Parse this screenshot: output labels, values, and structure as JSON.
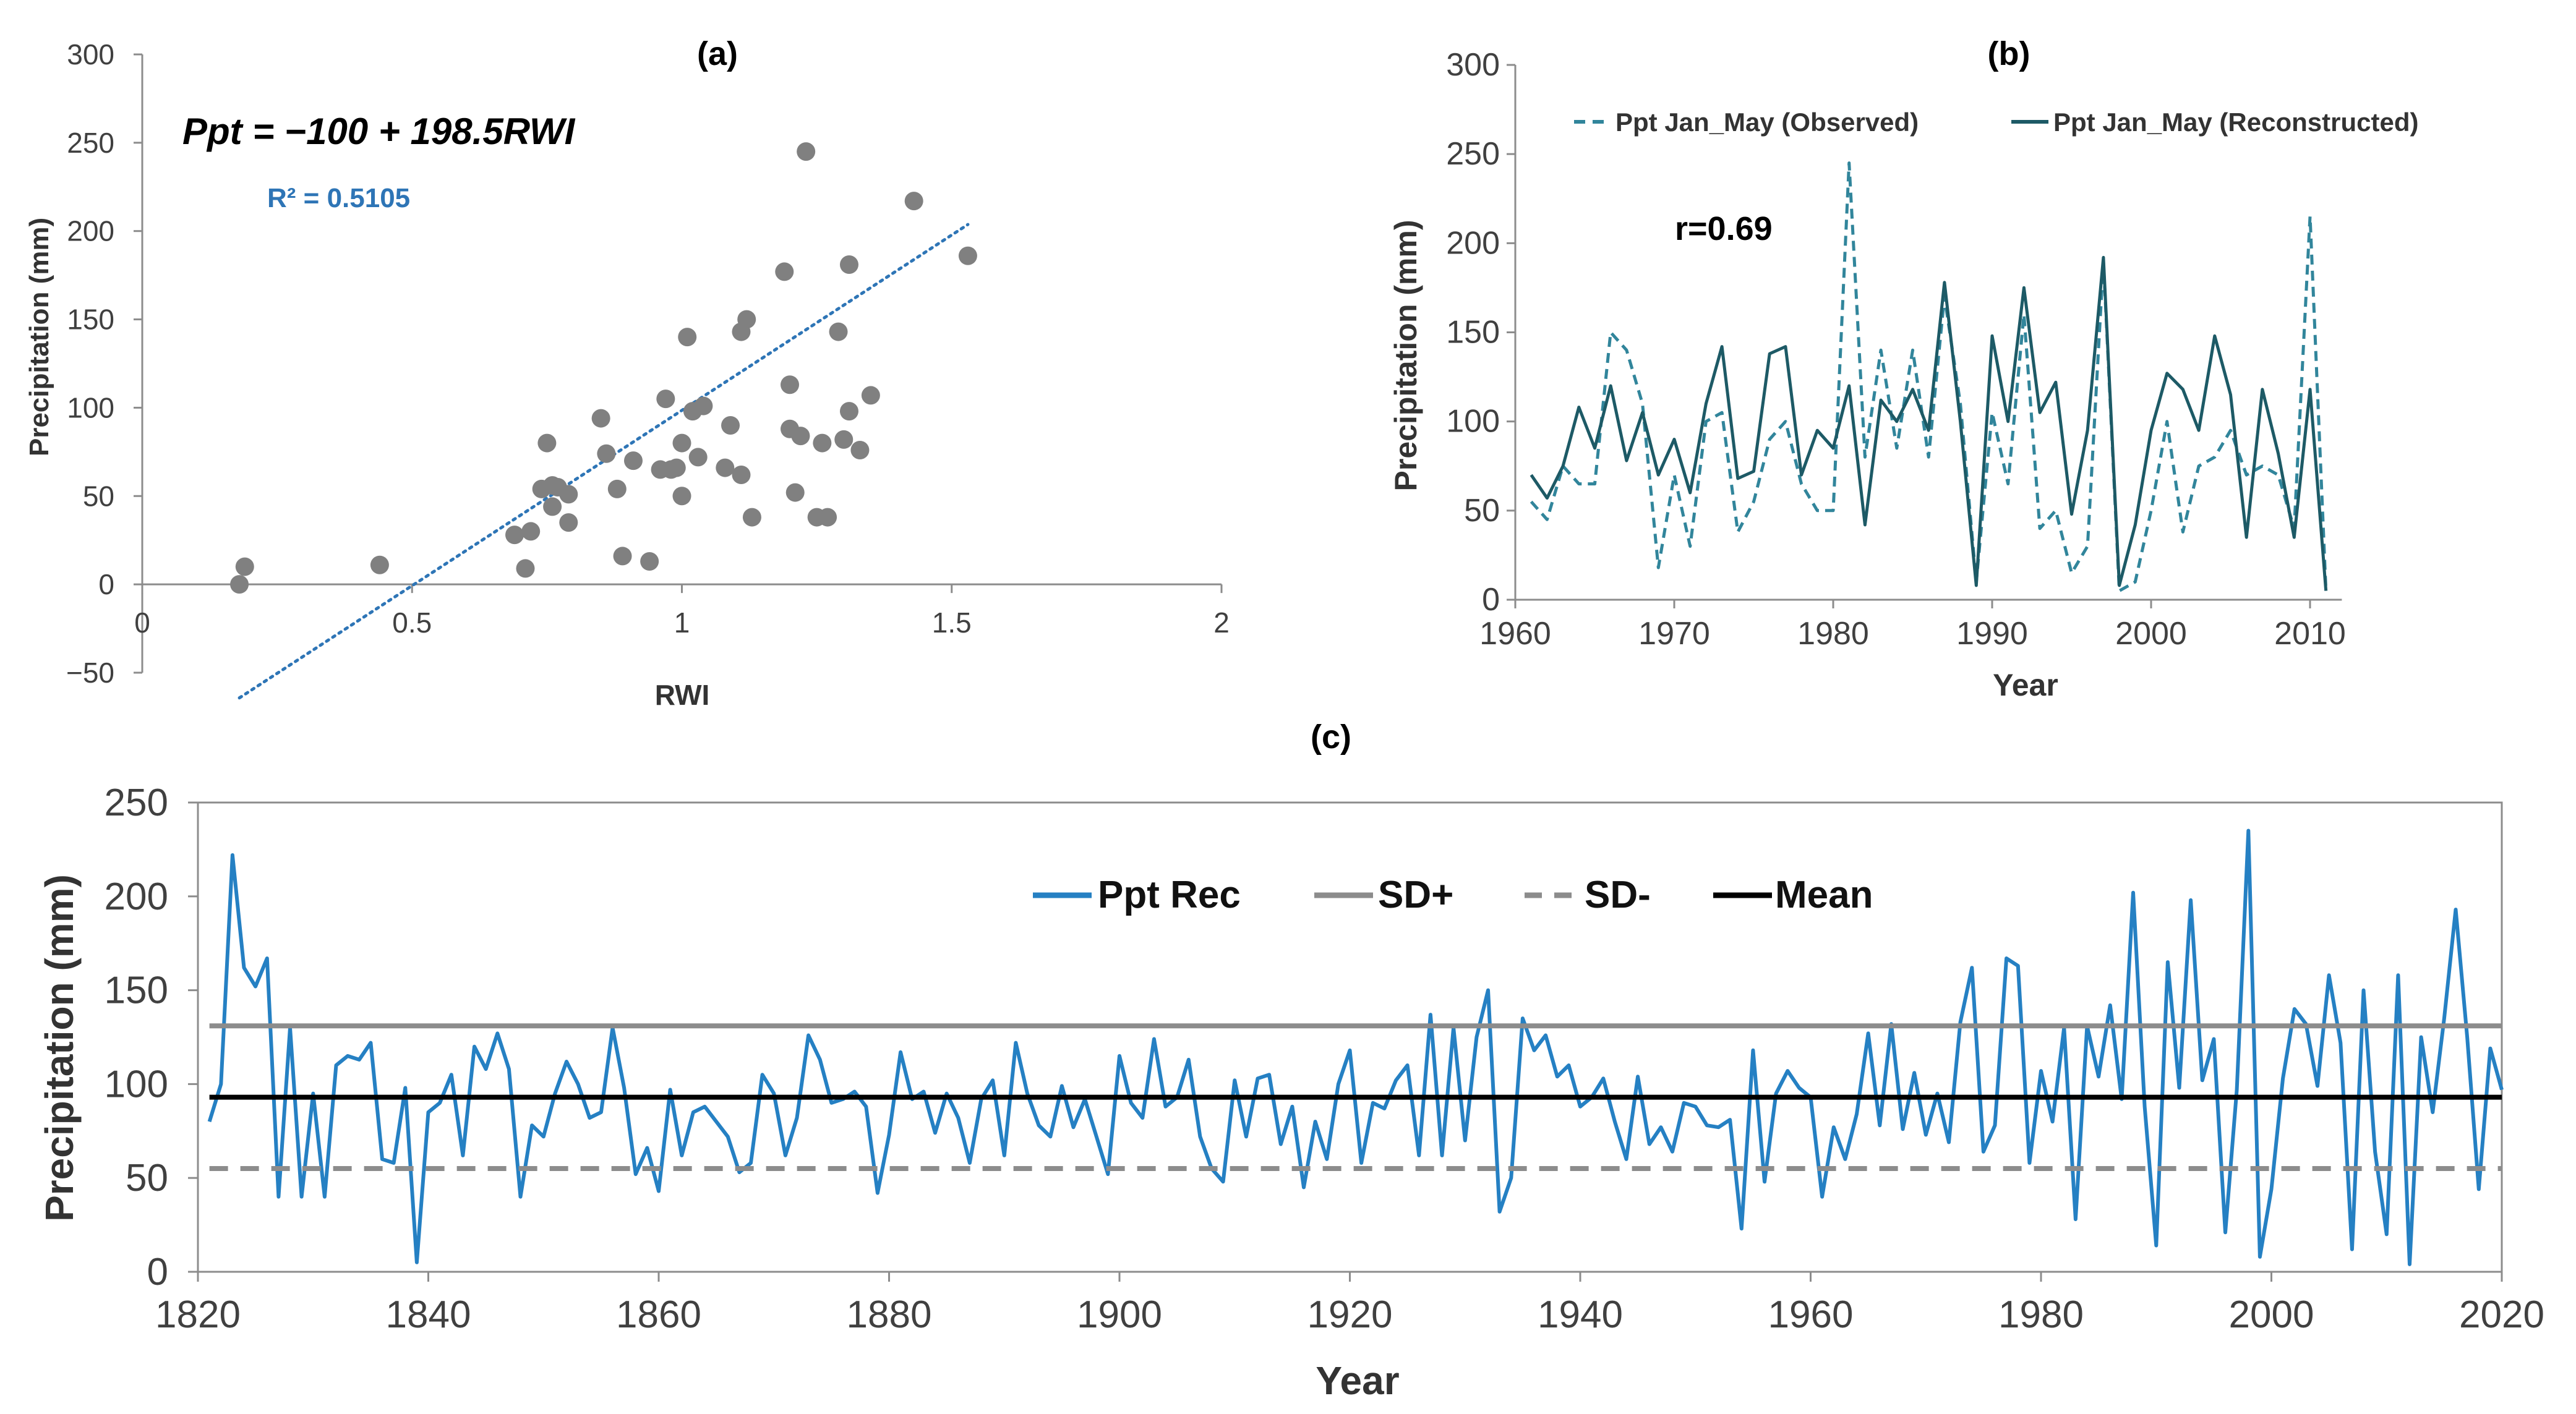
{
  "chart_data": [
    {
      "panel": "a",
      "type": "scatter",
      "title": "(a)",
      "xlabel": "RWI",
      "ylabel": "Precipitation (mm)",
      "xlim": [
        0,
        2
      ],
      "ylim": [
        -50,
        300
      ],
      "x_ticks": [
        "0",
        "0.5",
        "1",
        "1.5",
        "2"
      ],
      "y_ticks": [
        "−50",
        "0",
        "50",
        "100",
        "150",
        "200",
        "250",
        "300"
      ],
      "equation": "Ppt = −100 + 198.5RWI",
      "r2_label": "R² = 0.5105",
      "trendline": {
        "slope": 198.5,
        "intercept": -100,
        "x_range": [
          0.18,
          1.53
        ]
      },
      "colors": {
        "points": "#808080",
        "trend": "#2e75b6",
        "r2": "#2e75b6"
      },
      "x": [
        0.18,
        0.19,
        0.44,
        0.69,
        0.71,
        0.72,
        0.74,
        0.75,
        0.76,
        0.76,
        0.77,
        0.79,
        0.79,
        0.85,
        0.86,
        0.88,
        0.89,
        0.91,
        0.94,
        0.96,
        0.97,
        0.98,
        0.99,
        1.0,
        1.0,
        1.01,
        1.02,
        1.03,
        1.04,
        1.08,
        1.09,
        1.11,
        1.11,
        1.12,
        1.13,
        1.19,
        1.2,
        1.2,
        1.21,
        1.22,
        1.23,
        1.25,
        1.26,
        1.27,
        1.29,
        1.3,
        1.31,
        1.31,
        1.33,
        1.35,
        1.43,
        1.53
      ],
      "y": [
        0,
        10,
        11,
        28,
        9,
        30,
        54,
        80,
        44,
        56,
        55,
        51,
        35,
        94,
        74,
        54,
        16,
        70,
        13,
        65,
        105,
        65,
        66,
        50,
        80,
        140,
        98,
        72,
        101,
        66,
        90,
        62,
        143,
        150,
        38,
        177,
        113,
        88,
        52,
        84,
        245,
        38,
        80,
        38,
        143,
        82,
        181,
        98,
        76,
        107,
        217,
        186
      ]
    },
    {
      "panel": "b",
      "type": "line",
      "title": "(b)",
      "xlabel": "Year",
      "ylabel": "Precipitation (mm)",
      "xlim": [
        1960,
        2012
      ],
      "ylim": [
        0,
        300
      ],
      "x_ticks": [
        "1960",
        "1970",
        "1980",
        "1990",
        "2000",
        "2010"
      ],
      "y_ticks": [
        "0",
        "50",
        "100",
        "150",
        "200",
        "250",
        "300"
      ],
      "annotation": "r=0.69",
      "x": [
        1961,
        1962,
        1963,
        1964,
        1965,
        1966,
        1967,
        1968,
        1969,
        1970,
        1971,
        1972,
        1973,
        1974,
        1975,
        1976,
        1977,
        1978,
        1979,
        1980,
        1981,
        1982,
        1983,
        1984,
        1985,
        1986,
        1987,
        1988,
        1989,
        1990,
        1991,
        1992,
        1993,
        1994,
        1995,
        1996,
        1997,
        1998,
        1999,
        2000,
        2001,
        2002,
        2003,
        2004,
        2005,
        2006,
        2007,
        2008,
        2009,
        2010,
        2011
      ],
      "series": [
        {
          "name": "Ppt Jan_May (Observed)",
          "style": "dashed",
          "color": "#31859b",
          "values": [
            55,
            45,
            75,
            65,
            65,
            150,
            140,
            110,
            18,
            70,
            30,
            100,
            105,
            38,
            55,
            90,
            100,
            65,
            50,
            50,
            245,
            80,
            140,
            85,
            140,
            80,
            170,
            110,
            10,
            105,
            65,
            160,
            40,
            50,
            15,
            30,
            190,
            5,
            10,
            50,
            100,
            38,
            75,
            80,
            95,
            70,
            75,
            70,
            40,
            215,
            5
          ]
        },
        {
          "name": "Ppt Jan_May (Reconstructed)",
          "style": "solid",
          "color": "#1d5a66",
          "values": [
            70,
            57,
            75,
            108,
            85,
            120,
            78,
            105,
            70,
            90,
            60,
            110,
            142,
            68,
            72,
            138,
            142,
            70,
            95,
            85,
            120,
            42,
            112,
            100,
            118,
            95,
            178,
            100,
            8,
            148,
            100,
            175,
            105,
            122,
            48,
            95,
            192,
            8,
            42,
            95,
            127,
            118,
            95,
            148,
            115,
            35,
            118,
            82,
            35,
            118,
            5
          ]
        }
      ]
    },
    {
      "panel": "c",
      "type": "line",
      "title": "(c)",
      "xlabel": "Year",
      "ylabel": "Precipitation (mm)",
      "xlim": [
        1820,
        2020
      ],
      "ylim": [
        0,
        250
      ],
      "x_ticks": [
        "1820",
        "1840",
        "1860",
        "1880",
        "1900",
        "1920",
        "1940",
        "1960",
        "1980",
        "2000",
        "2020"
      ],
      "y_ticks": [
        "0",
        "50",
        "100",
        "150",
        "200",
        "250"
      ],
      "x_start": 1821,
      "series": [
        {
          "name": "Ppt Rec",
          "style": "solid",
          "color": "#2580c3",
          "values": [
            80,
            100,
            222,
            162,
            152,
            167,
            40,
            130,
            40,
            95,
            40,
            110,
            115,
            113,
            122,
            60,
            58,
            98,
            5,
            85,
            90,
            105,
            62,
            120,
            108,
            127,
            108,
            40,
            78,
            72,
            95,
            112,
            100,
            82,
            85,
            130,
            98,
            52,
            66,
            43,
            97,
            62,
            85,
            88,
            80,
            72,
            53,
            58,
            105,
            95,
            62,
            82,
            126,
            113,
            90,
            92,
            96,
            88,
            42,
            73,
            117,
            92,
            96,
            74,
            95,
            82,
            58,
            92,
            102,
            62,
            122,
            95,
            78,
            72,
            99,
            77,
            92,
            72,
            52,
            115,
            90,
            82,
            124,
            88,
            93,
            113,
            72,
            55,
            48,
            102,
            72,
            103,
            105,
            68,
            88,
            45,
            80,
            60,
            100,
            118,
            58,
            90,
            87,
            102,
            110,
            62,
            137,
            62,
            130,
            70,
            125,
            150,
            32,
            50,
            135,
            118,
            126,
            104,
            110,
            88,
            93,
            103,
            80,
            60,
            104,
            68,
            77,
            64,
            90,
            88,
            78,
            77,
            81,
            23,
            118,
            48,
            95,
            107,
            98,
            93,
            40,
            77,
            60,
            84,
            127,
            78,
            132,
            76,
            106,
            73,
            95,
            69,
            133,
            162,
            64,
            78,
            167,
            163,
            58,
            107,
            80,
            130,
            28,
            131,
            104,
            142,
            92,
            202,
            88,
            14,
            165,
            98,
            198,
            102,
            124,
            21,
            97,
            235,
            8,
            44,
            103,
            140,
            132,
            99,
            158,
            122,
            12,
            150,
            64,
            20,
            158,
            4,
            125,
            85,
            135,
            193,
            125,
            44,
            119,
            97
          ]
        },
        {
          "name": "SD+",
          "style": "solid",
          "color": "#8c8c8c",
          "level": 131
        },
        {
          "name": "SD-",
          "style": "dashed",
          "color": "#8c8c8c",
          "level": 55
        },
        {
          "name": "Mean",
          "style": "solid",
          "color": "#000000",
          "level": 93
        }
      ]
    }
  ]
}
